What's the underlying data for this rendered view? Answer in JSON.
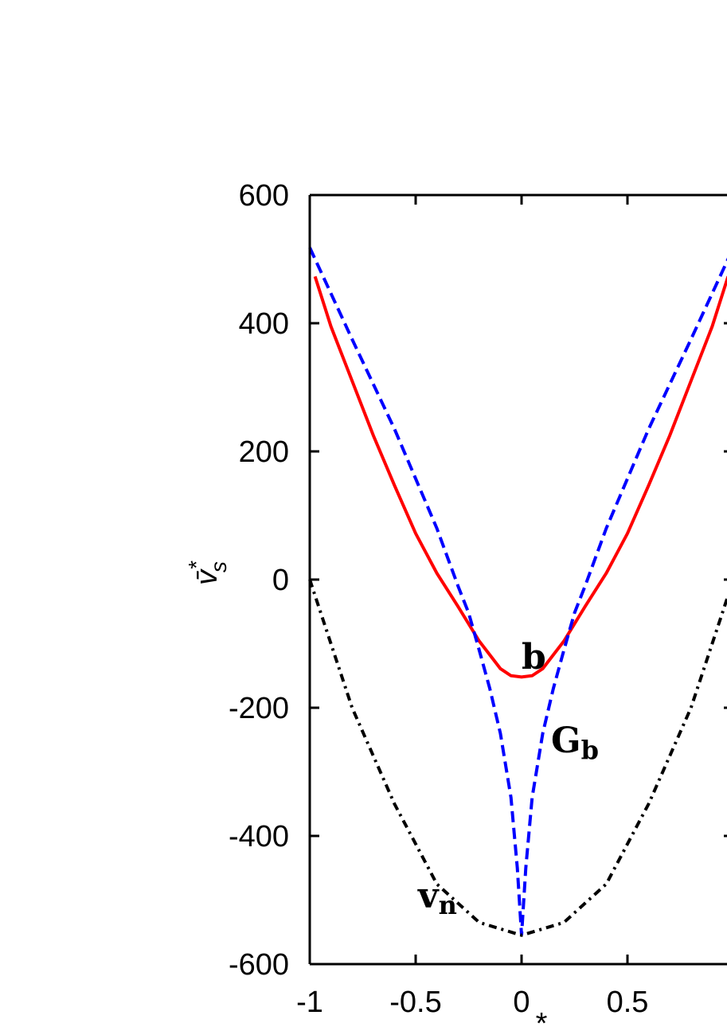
{
  "chart_data": {
    "type": "line",
    "xlabel": "*",
    "ylabel": {
      "text": "v̄",
      "sup": "*",
      "sub": "s"
    },
    "xlim": [
      -1,
      1
    ],
    "xticks": [
      -1,
      -0.5,
      0,
      0.5
    ],
    "ylim": [
      -600,
      600
    ],
    "yticks": [
      -600,
      -400,
      -200,
      0,
      200,
      400,
      600
    ],
    "series": [
      {
        "color": "#ff0000",
        "dash": "solid",
        "x": [
          -0.975,
          -0.9,
          -0.8,
          -0.7,
          -0.6,
          -0.5,
          -0.4,
          -0.3,
          -0.2,
          -0.1,
          -0.05,
          0,
          0.05,
          0.1,
          0.2,
          0.3,
          0.4,
          0.5,
          0.6,
          0.7,
          0.8,
          0.9,
          0.975
        ],
        "values": [
          473,
          395,
          310,
          225,
          147,
          72,
          10,
          -42,
          -96,
          -139,
          -150,
          -152,
          -150,
          -139,
          -96,
          -42,
          10,
          72,
          147,
          225,
          310,
          395,
          473
        ]
      },
      {
        "color": "#0000ff",
        "dash": "dashed",
        "x": [
          -1,
          -0.8,
          -0.6,
          -0.4,
          -0.3,
          -0.25,
          -0.2,
          -0.15,
          -0.1,
          -0.05,
          -0.02,
          0,
          0.02,
          0.05,
          0.1,
          0.15,
          0.2,
          0.25,
          0.3,
          0.4,
          0.6,
          0.8,
          1
        ],
        "values": [
          518,
          375,
          235,
          80,
          -10,
          -52,
          -110,
          -170,
          -240,
          -340,
          -450,
          -555,
          -450,
          -340,
          -240,
          -170,
          -110,
          -52,
          -10,
          80,
          235,
          375,
          518
        ]
      },
      {
        "color": "#000000",
        "dash": "dashdot",
        "x": [
          -1,
          -0.8,
          -0.6,
          -0.4,
          -0.2,
          0,
          0.2,
          0.4,
          0.6,
          0.8,
          1
        ],
        "values": [
          0,
          -200,
          -350,
          -475,
          -535,
          -555,
          -535,
          -475,
          -350,
          -200,
          0
        ]
      }
    ],
    "annotations": [
      {
        "text": "b",
        "sub": ""
      },
      {
        "text": "G",
        "sub": "b"
      },
      {
        "text": "v",
        "sub": "n"
      }
    ]
  }
}
